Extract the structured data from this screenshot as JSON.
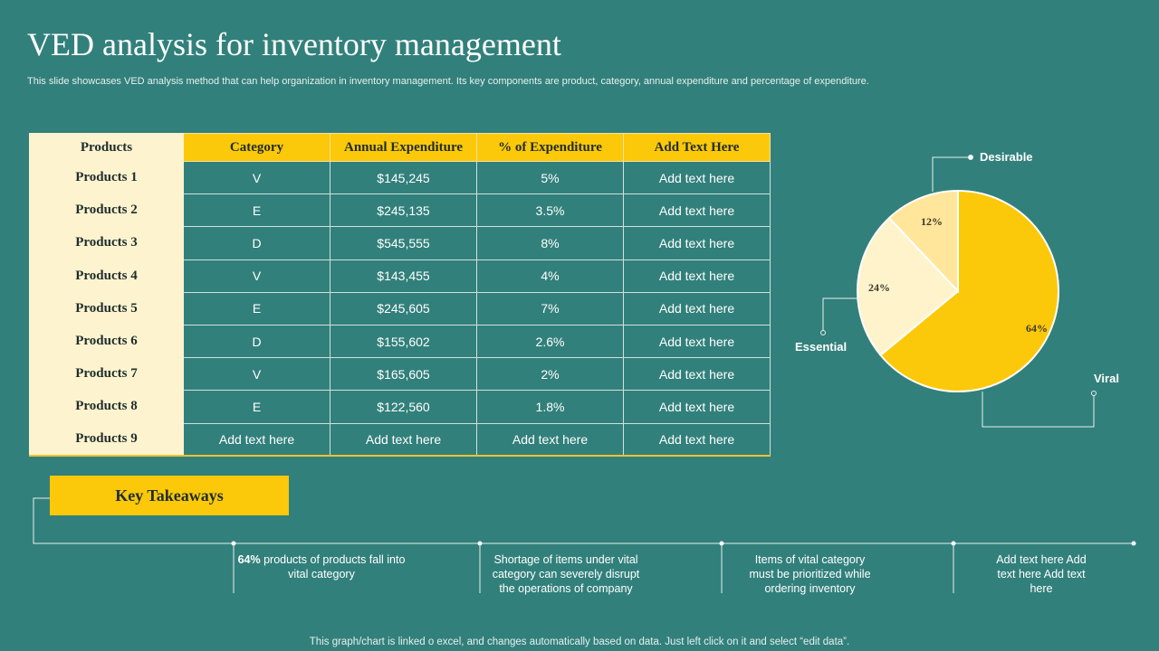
{
  "title": "VED analysis for inventory management",
  "subtitle": "This slide showcases VED analysis method that can help organization in inventory management. Its key components are product, category, annual expenditure and percentage of expenditure.",
  "table": {
    "headers": [
      "Products",
      "Category",
      "Annual Expenditure",
      "% of Expenditure",
      "Add Text Here"
    ],
    "rows": [
      [
        "Products 1",
        "V",
        "$145,245",
        "5%",
        "Add text here"
      ],
      [
        "Products 2",
        "E",
        "$245,135",
        "3.5%",
        "Add text here"
      ],
      [
        "Products 3",
        "D",
        "$545,555",
        "8%",
        "Add text here"
      ],
      [
        "Products 4",
        "V",
        "$143,455",
        "4%",
        "Add text here"
      ],
      [
        "Products 5",
        "E",
        "$245,605",
        "7%",
        "Add text here"
      ],
      [
        "Products 6",
        "D",
        "$155,602",
        "2.6%",
        "Add text here"
      ],
      [
        "Products 7",
        "V",
        "$165,605",
        "2%",
        "Add text here"
      ],
      [
        "Products 8",
        "E",
        "$122,560",
        "1.8%",
        "Add text here"
      ],
      [
        "Products 9",
        "Add text here",
        "Add text here",
        "Add text here",
        "Add text here"
      ]
    ]
  },
  "chart_data": {
    "type": "pie",
    "title": "",
    "slices": [
      {
        "name": "Viral",
        "value": 64,
        "label": "64%",
        "color": "#fcc80a"
      },
      {
        "name": "Essential",
        "value": 24,
        "label": "24%",
        "color": "#fff3cc"
      },
      {
        "name": "Desirable",
        "value": 12,
        "label": "12%",
        "color": "#ffe69a"
      }
    ],
    "legend": "callout labels"
  },
  "takeaways": {
    "heading": "Key Takeaways",
    "items": [
      {
        "bold": "64%",
        "text": " products of products fall into vital category"
      },
      {
        "bold": "",
        "text": "Shortage of items under vital category can severely disrupt the operations of company"
      },
      {
        "bold": "",
        "text": "Items of vital category must be prioritized while ordering inventory"
      },
      {
        "bold": "",
        "text": "Add text here Add text here Add text here"
      }
    ]
  },
  "footer": "This graph/chart is linked o excel, and changes automatically based on data. Just left click on it and select “edit data”.",
  "colors": {
    "background": "#32807b",
    "accent": "#fcc80a",
    "cream": "#fdf3cf"
  }
}
